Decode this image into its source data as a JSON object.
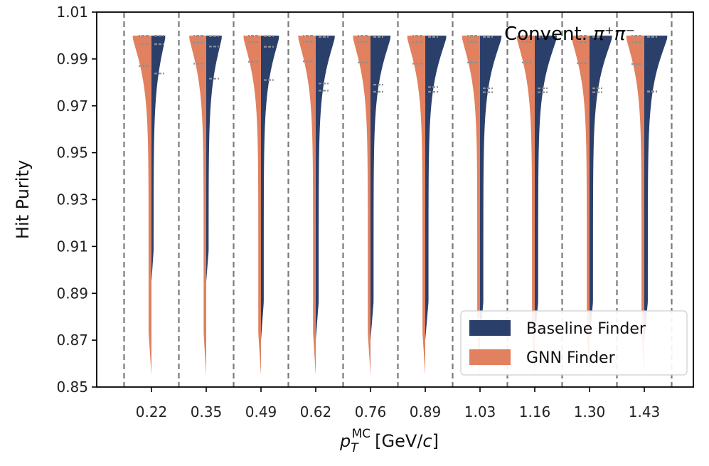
{
  "chart_data": {
    "type": "violin",
    "split": true,
    "xlabel_main": "p",
    "xlabel_sub": "T",
    "xlabel_sup": "MC",
    "xlabel_unit_pre": "[GeV/",
    "xlabel_unit_c": "c",
    "xlabel_unit_post": "]",
    "ylabel": "Hit Purity",
    "ylim": [
      0.85,
      1.01
    ],
    "yticks": [
      "0.85",
      "0.87",
      "0.89",
      "0.91",
      "0.93",
      "0.95",
      "0.97",
      "0.99",
      "1.01"
    ],
    "categories": [
      "0.22",
      "0.35",
      "0.49",
      "0.62",
      "0.76",
      "0.89",
      "1.03",
      "1.16",
      "1.30",
      "1.43"
    ],
    "annotation_text": "Convent. ",
    "annotation_math": "π⁺π⁻",
    "legend_position": "lower-right",
    "colors": {
      "baseline": "#2b3f6b",
      "gnn": "#e1815f",
      "quartile": "#8f8f8f",
      "divider": "#7a7a7a"
    },
    "series": [
      {
        "name": "Baseline Finder",
        "side": "right",
        "width": [
          0.55,
          0.62,
          0.72,
          0.76,
          0.8,
          0.84,
          0.86,
          0.88,
          0.9,
          0.92
        ],
        "quartiles": [
          [
            0.9838,
            0.9963,
            0.9999
          ],
          [
            0.9816,
            0.9953,
            0.9998
          ],
          [
            0.981,
            0.9952,
            0.9998
          ],
          [
            0.9765,
            0.9795,
            0.9994
          ],
          [
            0.976,
            0.979,
            0.9994
          ],
          [
            0.976,
            0.978,
            0.9994
          ],
          [
            0.9758,
            0.9775,
            0.9994
          ],
          [
            0.9758,
            0.9775,
            0.9994
          ],
          [
            0.9758,
            0.9775,
            0.9994
          ],
          [
            0.976,
            0.9762,
            0.9994
          ]
        ]
      },
      {
        "name": "GNN Finder",
        "side": "left",
        "width": [
          0.75,
          0.68,
          0.7,
          0.7,
          0.7,
          0.72,
          0.72,
          0.72,
          0.72,
          0.72
        ],
        "quartiles": [
          [
            0.987,
            0.9965,
            0.9999
          ],
          [
            0.988,
            0.997,
            0.9999
          ],
          [
            0.9888,
            0.9972,
            0.9999
          ],
          [
            0.989,
            0.9974,
            0.9999
          ],
          [
            0.9885,
            0.9973,
            0.9999
          ],
          [
            0.988,
            0.9972,
            0.9999
          ],
          [
            0.9885,
            0.9973,
            0.9999
          ],
          [
            0.9885,
            0.9973,
            0.9999
          ],
          [
            0.9882,
            0.9972,
            0.9999
          ],
          [
            0.9878,
            0.9971,
            0.9999
          ]
        ]
      }
    ]
  }
}
